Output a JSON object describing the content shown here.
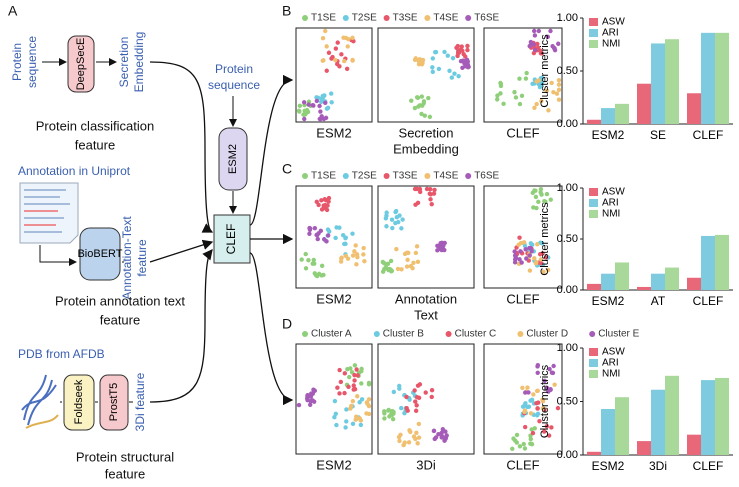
{
  "panels": {
    "a": "A",
    "b": "B",
    "c": "C",
    "d": "D"
  },
  "diagram": {
    "seq_in": [
      "Protein",
      "sequence"
    ],
    "deepsece": "DeepSecE",
    "secretion": [
      "Secretion",
      "Embedding"
    ],
    "class_feature": [
      "Protein classification",
      "feature"
    ],
    "uniprot": "Annotation in Uniprot",
    "biobert": "BioBERT",
    "annot": [
      "Annotation-Text",
      "feature"
    ],
    "annot_feature": [
      "Protein annotation text",
      "feature"
    ],
    "afdb": "PDB from AFDB",
    "foldseek": "Foldseek",
    "prostt5": "ProstT5",
    "threedi": "3Di feature",
    "struct_feature": [
      "Protein structural",
      "feature"
    ],
    "seq_mid": [
      "Protein",
      "sequence"
    ],
    "esm2": "ESM2",
    "clef": "CLEF"
  },
  "scatter": [
    {
      "legend": [
        {
          "name": "T1SE",
          "color": "#8fcf7a"
        },
        {
          "name": "T2SE",
          "color": "#6ccbe0"
        },
        {
          "name": "T3SE",
          "color": "#e8566a"
        },
        {
          "name": "T4SE",
          "color": "#f0c070"
        },
        {
          "name": "T6SE",
          "color": "#a55bb8"
        }
      ],
      "labels": [
        [
          "ESM2"
        ],
        [
          "Secretion",
          "Embedding"
        ],
        [
          "CLEF"
        ]
      ]
    },
    {
      "legend": [
        {
          "name": "T1SE",
          "color": "#8fcf7a"
        },
        {
          "name": "T2SE",
          "color": "#6ccbe0"
        },
        {
          "name": "T3SE",
          "color": "#e8566a"
        },
        {
          "name": "T4SE",
          "color": "#f0c070"
        },
        {
          "name": "T6SE",
          "color": "#a55bb8"
        }
      ],
      "labels": [
        [
          "ESM2"
        ],
        [
          "Annotation",
          "Text"
        ],
        [
          "CLEF"
        ]
      ]
    },
    {
      "legend": [
        {
          "name": "Cluster A",
          "color": "#8fcf7a"
        },
        {
          "name": "Cluster B",
          "color": "#6ccbe0"
        },
        {
          "name": "Cluster C",
          "color": "#e8566a"
        },
        {
          "name": "Cluster D",
          "color": "#f0c070"
        },
        {
          "name": "Cluster E",
          "color": "#a55bb8"
        }
      ],
      "labels": [
        [
          "ESM2"
        ],
        [
          "3Di"
        ],
        [
          "CLEF"
        ]
      ]
    }
  ],
  "chart_data": [
    {
      "type": "bar",
      "ylabel": "Cluster metrics",
      "categories": [
        "ESM2",
        "SE",
        "CLEF"
      ],
      "ylim": [
        0,
        1
      ],
      "yticks": [
        {
          "value": 0,
          "label": "0.00"
        },
        {
          "value": 0.5,
          "label": "0.50"
        },
        {
          "value": 1,
          "label": "1.00"
        }
      ],
      "legend": "upper left",
      "series": [
        {
          "name": "ASW",
          "color": "#e8687a",
          "values": [
            0.04,
            0.38,
            0.29
          ]
        },
        {
          "name": "ARI",
          "color": "#7ecbe0",
          "values": [
            0.15,
            0.76,
            0.86
          ]
        },
        {
          "name": "NMI",
          "color": "#a8d89a",
          "values": [
            0.19,
            0.8,
            0.86
          ]
        }
      ]
    },
    {
      "type": "bar",
      "ylabel": "Cluster metrics",
      "categories": [
        "ESM2",
        "AT",
        "CLEF"
      ],
      "ylim": [
        0,
        1
      ],
      "yticks": [
        {
          "value": 0,
          "label": "0.00"
        },
        {
          "value": 0.5,
          "label": "0.50"
        },
        {
          "value": 1,
          "label": "1.00"
        }
      ],
      "legend": "upper left",
      "series": [
        {
          "name": "ASW",
          "color": "#e8687a",
          "values": [
            0.06,
            0.03,
            0.12
          ]
        },
        {
          "name": "ARI",
          "color": "#7ecbe0",
          "values": [
            0.16,
            0.16,
            0.53
          ]
        },
        {
          "name": "NMI",
          "color": "#a8d89a",
          "values": [
            0.27,
            0.22,
            0.54
          ]
        }
      ]
    },
    {
      "type": "bar",
      "ylabel": "Cluster metrics",
      "categories": [
        "ESM2",
        "3Di",
        "CLEF"
      ],
      "ylim": [
        0,
        1
      ],
      "yticks": [
        {
          "value": 0,
          "label": "0.00"
        },
        {
          "value": 0.5,
          "label": "0.50"
        },
        {
          "value": 1,
          "label": "1.00"
        }
      ],
      "legend": "upper left",
      "series": [
        {
          "name": "ASW",
          "color": "#e8687a",
          "values": [
            0.03,
            0.13,
            0.19
          ]
        },
        {
          "name": "ARI",
          "color": "#7ecbe0",
          "values": [
            0.43,
            0.61,
            0.7
          ]
        },
        {
          "name": "NMI",
          "color": "#a8d89a",
          "values": [
            0.54,
            0.74,
            0.72
          ]
        }
      ]
    }
  ]
}
